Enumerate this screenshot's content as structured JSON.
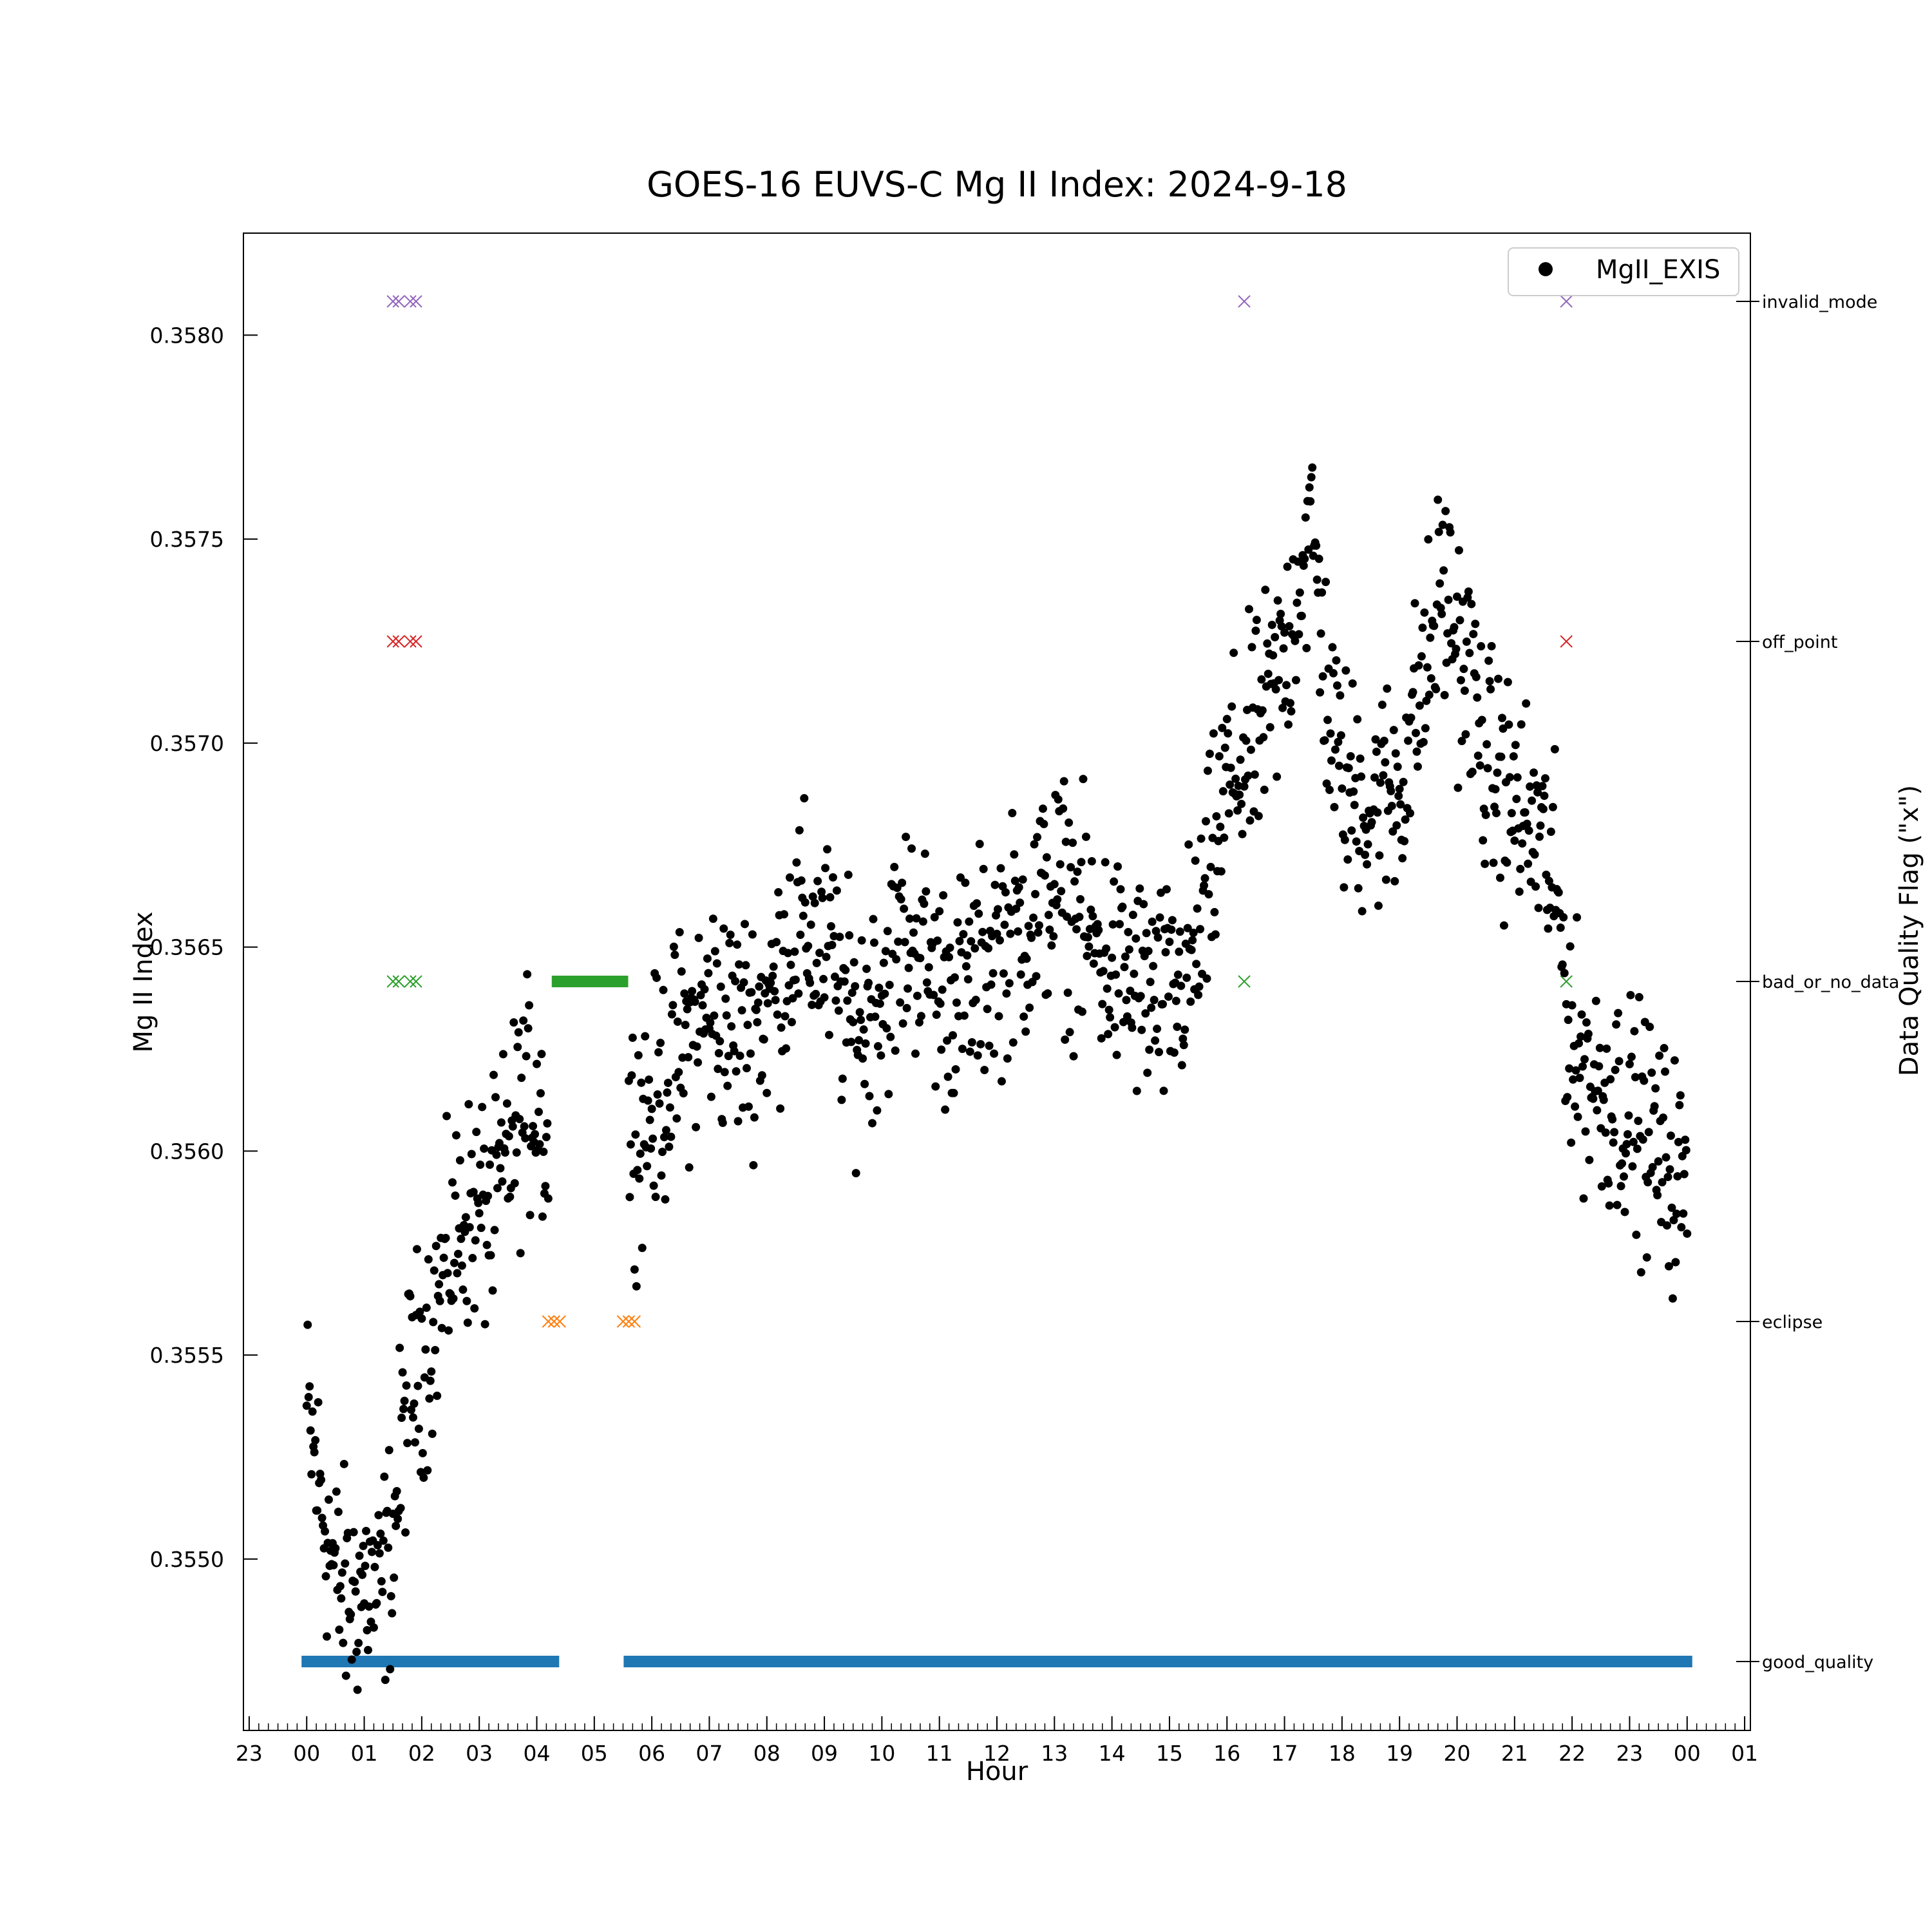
{
  "chart_data": {
    "type": "scatter",
    "title": "GOES-16 EUVS-C Mg II Index: 2024-9-18",
    "xlabel": "Hour",
    "ylabel": "Mg II Index",
    "ylabel_right": "Data Quality Flag (\"x\")",
    "x_unit": "hours since 2024-09-18 00:00",
    "xlim": [
      -1.1,
      25.1
    ],
    "ylim": [
      0.35458,
      0.35825
    ],
    "x_tick_labels": [
      "23",
      "00",
      "01",
      "02",
      "03",
      "04",
      "05",
      "06",
      "07",
      "08",
      "09",
      "10",
      "11",
      "12",
      "13",
      "14",
      "15",
      "16",
      "17",
      "18",
      "19",
      "20",
      "21",
      "22",
      "23",
      "00",
      "01"
    ],
    "y_tick_values": [
      0.355,
      0.3555,
      0.356,
      0.3565,
      0.357,
      0.3575,
      0.358
    ],
    "y_tick_labels": [
      "0.3550",
      "0.3555",
      "0.3560",
      "0.3565",
      "0.3570",
      "0.3575",
      "0.3580"
    ],
    "flag_levels": [
      "good_quality",
      "eclipse",
      "bad_or_no_data",
      "off_point",
      "invalid_mode"
    ],
    "legend": {
      "label": "MgII_EXIS",
      "position": "top-right"
    },
    "grid": false,
    "series": [
      {
        "name": "MgII_EXIS",
        "color": "#000000",
        "marker": "circle",
        "segments": [
          [
            0.0,
            0.35535
          ],
          [
            0.25,
            0.35515
          ],
          [
            0.5,
            0.35495
          ],
          [
            0.75,
            0.3549
          ],
          [
            1.0,
            0.35495
          ],
          [
            1.25,
            0.3549
          ],
          [
            1.5,
            0.35505
          ],
          [
            1.75,
            0.3554
          ],
          [
            2.0,
            0.3555
          ],
          [
            2.25,
            0.3556
          ],
          [
            2.5,
            0.35575
          ],
          [
            2.75,
            0.35585
          ],
          [
            3.0,
            0.35585
          ],
          [
            3.25,
            0.35585
          ],
          [
            3.5,
            0.356
          ],
          [
            3.75,
            0.3561
          ],
          [
            4.0,
            0.35615
          ],
          [
            4.2,
            0.356
          ]
        ]
      },
      {
        "name": "MgII_EXIS (continued)",
        "color": "#000000",
        "marker": "circle",
        "segments": [
          [
            5.6,
            0.35605
          ],
          [
            6.0,
            0.3561
          ],
          [
            6.5,
            0.35625
          ],
          [
            7.0,
            0.35635
          ],
          [
            7.5,
            0.3563
          ],
          [
            8.0,
            0.35635
          ],
          [
            8.5,
            0.35655
          ],
          [
            9.0,
            0.3565
          ],
          [
            9.5,
            0.3563
          ],
          [
            10.0,
            0.3564
          ],
          [
            10.5,
            0.35655
          ],
          [
            11.0,
            0.3564
          ],
          [
            11.5,
            0.3564
          ],
          [
            12.0,
            0.3565
          ],
          [
            12.5,
            0.35655
          ],
          [
            13.0,
            0.35665
          ],
          [
            13.5,
            0.35655
          ],
          [
            14.0,
            0.35645
          ],
          [
            14.5,
            0.3564
          ],
          [
            15.0,
            0.35635
          ],
          [
            15.5,
            0.3565
          ],
          [
            16.0,
            0.3569
          ],
          [
            16.5,
            0.357
          ],
          [
            17.0,
            0.3572
          ],
          [
            17.3,
            0.35745
          ],
          [
            17.5,
            0.3575
          ],
          [
            17.75,
            0.3571
          ],
          [
            18.0,
            0.3569
          ],
          [
            18.5,
            0.35685
          ],
          [
            19.0,
            0.3569
          ],
          [
            19.5,
            0.3572
          ],
          [
            19.75,
            0.3574
          ],
          [
            20.0,
            0.35725
          ],
          [
            20.25,
            0.35715
          ],
          [
            20.5,
            0.35695
          ],
          [
            21.0,
            0.35685
          ],
          [
            21.5,
            0.35675
          ],
          [
            21.75,
            0.3566
          ],
          [
            22.0,
            0.35625
          ],
          [
            22.5,
            0.35615
          ],
          [
            23.0,
            0.3561
          ],
          [
            23.5,
            0.356
          ],
          [
            24.0,
            0.3559
          ]
        ]
      }
    ],
    "flag_markers": [
      {
        "flag": "invalid_mode",
        "color": "#9467bd",
        "x": [
          1.5,
          1.6,
          1.8,
          1.9,
          16.3,
          21.9
        ]
      },
      {
        "flag": "off_point",
        "color": "#d62728",
        "x": [
          1.5,
          1.6,
          1.8,
          1.9,
          21.9
        ]
      },
      {
        "flag": "bad_or_no_data",
        "color": "#2ca02c",
        "x": [
          1.5,
          1.6,
          1.8,
          1.9,
          16.3,
          21.9
        ],
        "range": [
          4.35,
          5.5
        ]
      },
      {
        "flag": "eclipse",
        "color": "#ff7f0e",
        "x": [
          4.2,
          4.3,
          4.4,
          5.5,
          5.6,
          5.7
        ]
      },
      {
        "flag": "good_quality",
        "color": "#1f77b4",
        "range_segments": [
          [
            0.0,
            4.3
          ],
          [
            5.6,
            24.0
          ]
        ]
      }
    ]
  }
}
